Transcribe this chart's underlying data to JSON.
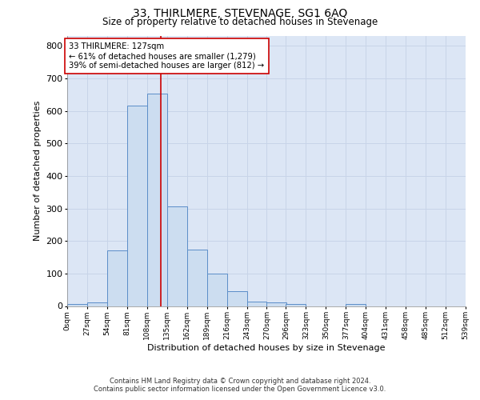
{
  "title": "33, THIRLMERE, STEVENAGE, SG1 6AQ",
  "subtitle": "Size of property relative to detached houses in Stevenage",
  "xlabel": "Distribution of detached houses by size in Stevenage",
  "ylabel": "Number of detached properties",
  "bin_edges": [
    0,
    27,
    54,
    81,
    108,
    135,
    162,
    189,
    216,
    243,
    270,
    296,
    323,
    350,
    377,
    404,
    431,
    458,
    485,
    512,
    539
  ],
  "bar_heights": [
    7,
    12,
    170,
    617,
    653,
    305,
    173,
    100,
    45,
    13,
    10,
    7,
    0,
    0,
    5,
    0,
    0,
    0,
    0,
    0
  ],
  "bar_facecolor": "#ccddf0",
  "bar_edgecolor": "#5b8dc8",
  "grid_color": "#c8d4e8",
  "background_color": "#dce6f5",
  "property_sqm": 127,
  "vline_color": "#cc0000",
  "annotation_line1": "33 THIRLMERE: 127sqm",
  "annotation_line2": "← 61% of detached houses are smaller (1,279)",
  "annotation_line3": "39% of semi-detached houses are larger (812) →",
  "annotation_box_color": "#ffffff",
  "annotation_box_edgecolor": "#cc0000",
  "ylim": [
    0,
    830
  ],
  "yticks": [
    0,
    100,
    200,
    300,
    400,
    500,
    600,
    700,
    800
  ],
  "tick_labels": [
    "0sqm",
    "27sqm",
    "54sqm",
    "81sqm",
    "108sqm",
    "135sqm",
    "162sqm",
    "189sqm",
    "216sqm",
    "243sqm",
    "270sqm",
    "296sqm",
    "323sqm",
    "350sqm",
    "377sqm",
    "404sqm",
    "431sqm",
    "458sqm",
    "485sqm",
    "512sqm",
    "539sqm"
  ],
  "footer_line1": "Contains HM Land Registry data © Crown copyright and database right 2024.",
  "footer_line2": "Contains public sector information licensed under the Open Government Licence v3.0."
}
